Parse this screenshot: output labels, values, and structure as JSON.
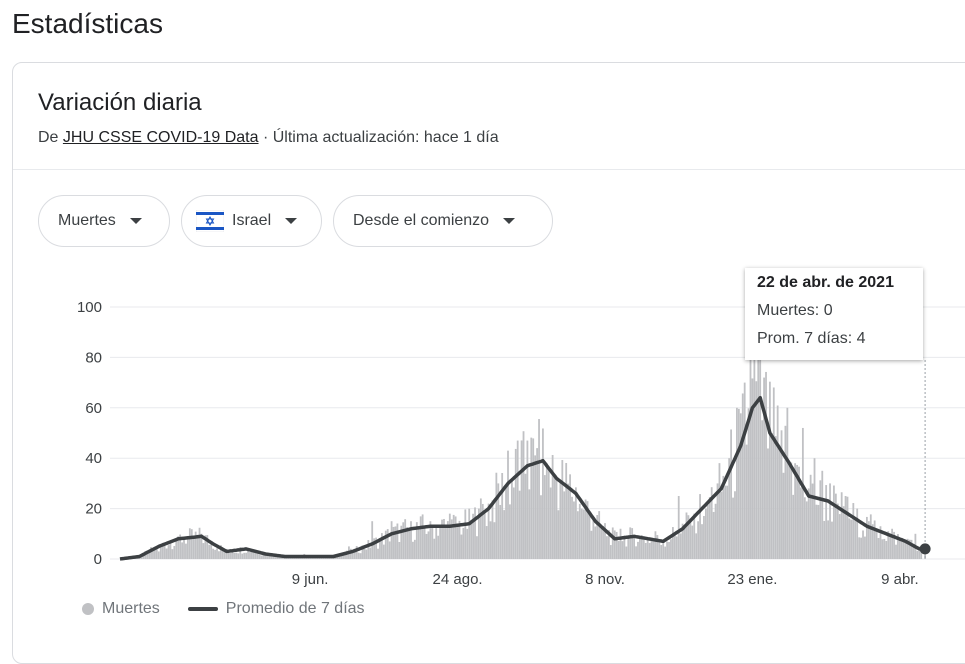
{
  "page": {
    "heading": "Estadísticas"
  },
  "card": {
    "title": "Variación diaria",
    "source_prefix": "De ",
    "source_link": "JHU CSSE COVID-19 Data",
    "source_suffix": " · Última actualización: hace 1 día"
  },
  "filters": {
    "metric": "Muertes",
    "country": "Israel",
    "range": "Desde el comienzo"
  },
  "tooltip": {
    "date": "22 de abr. de 2021",
    "deaths_line": "Muertes: 0",
    "avg_line": "Prom. 7 días: 4"
  },
  "legend": {
    "bars_label": "Muertes",
    "line_label": "Promedio de 7 días"
  },
  "colors": {
    "bars": "#c0c1c4",
    "line": "#3c4043",
    "grid": "#e8eaed"
  },
  "chart_data": {
    "type": "bar",
    "title": "",
    "xlabel": "",
    "ylabel": "",
    "ylim": [
      0,
      100
    ],
    "yticks": [
      0,
      20,
      40,
      60,
      80,
      100
    ],
    "x_tick_labels": [
      {
        "label": "9 jun.",
        "index": 98
      },
      {
        "label": "24 ago.",
        "index": 174
      },
      {
        "label": "8 nov.",
        "index": 250
      },
      {
        "label": "23 ene.",
        "index": 326
      },
      {
        "label": "9 abr.",
        "index": 402
      }
    ],
    "series": [
      {
        "name": "Muertes",
        "type": "bar"
      },
      {
        "name": "Promedio de 7 días",
        "type": "line"
      }
    ],
    "avg_anchors": [
      [
        0,
        0
      ],
      [
        10,
        1
      ],
      [
        20,
        5
      ],
      [
        30,
        8
      ],
      [
        42,
        9
      ],
      [
        48,
        6
      ],
      [
        55,
        3
      ],
      [
        65,
        4
      ],
      [
        75,
        2
      ],
      [
        85,
        1
      ],
      [
        95,
        1
      ],
      [
        110,
        1
      ],
      [
        120,
        3
      ],
      [
        130,
        6
      ],
      [
        140,
        10
      ],
      [
        150,
        12
      ],
      [
        160,
        13
      ],
      [
        170,
        13
      ],
      [
        180,
        14
      ],
      [
        190,
        20
      ],
      [
        200,
        30
      ],
      [
        210,
        37
      ],
      [
        218,
        39
      ],
      [
        225,
        32
      ],
      [
        235,
        26
      ],
      [
        245,
        15
      ],
      [
        255,
        8
      ],
      [
        265,
        9
      ],
      [
        280,
        7
      ],
      [
        290,
        12
      ],
      [
        300,
        20
      ],
      [
        310,
        28
      ],
      [
        320,
        45
      ],
      [
        326,
        60
      ],
      [
        330,
        64
      ],
      [
        335,
        50
      ],
      [
        345,
        38
      ],
      [
        355,
        25
      ],
      [
        365,
        23
      ],
      [
        375,
        18
      ],
      [
        385,
        13
      ],
      [
        395,
        10
      ],
      [
        405,
        7
      ],
      [
        412,
        4
      ],
      [
        415,
        4
      ]
    ],
    "spikes": [
      [
        20,
        3
      ],
      [
        30,
        9
      ],
      [
        42,
        10
      ],
      [
        55,
        4
      ],
      [
        95,
        2
      ],
      [
        118,
        5
      ],
      [
        130,
        15
      ],
      [
        140,
        15
      ],
      [
        150,
        15
      ],
      [
        160,
        15
      ],
      [
        170,
        18
      ],
      [
        185,
        20
      ],
      [
        195,
        30
      ],
      [
        200,
        43
      ],
      [
        205,
        47
      ],
      [
        210,
        47
      ],
      [
        215,
        44
      ],
      [
        220,
        38
      ],
      [
        238,
        20
      ],
      [
        244,
        16
      ],
      [
        258,
        12
      ],
      [
        268,
        9
      ],
      [
        276,
        11
      ],
      [
        288,
        25
      ],
      [
        296,
        18
      ],
      [
        302,
        20
      ],
      [
        308,
        30
      ],
      [
        314,
        40
      ],
      [
        318,
        60
      ],
      [
        322,
        70
      ],
      [
        325,
        101
      ],
      [
        327,
        80
      ],
      [
        329,
        92
      ],
      [
        332,
        72
      ],
      [
        336,
        50
      ],
      [
        340,
        45
      ],
      [
        344,
        60
      ],
      [
        348,
        38
      ],
      [
        352,
        52
      ],
      [
        355,
        28
      ],
      [
        358,
        40
      ],
      [
        362,
        35
      ],
      [
        366,
        30
      ],
      [
        370,
        22
      ],
      [
        374,
        25
      ],
      [
        380,
        20
      ],
      [
        386,
        15
      ],
      [
        392,
        13
      ],
      [
        398,
        12
      ],
      [
        406,
        8
      ],
      [
        410,
        10
      ],
      [
        414,
        0
      ]
    ]
  }
}
